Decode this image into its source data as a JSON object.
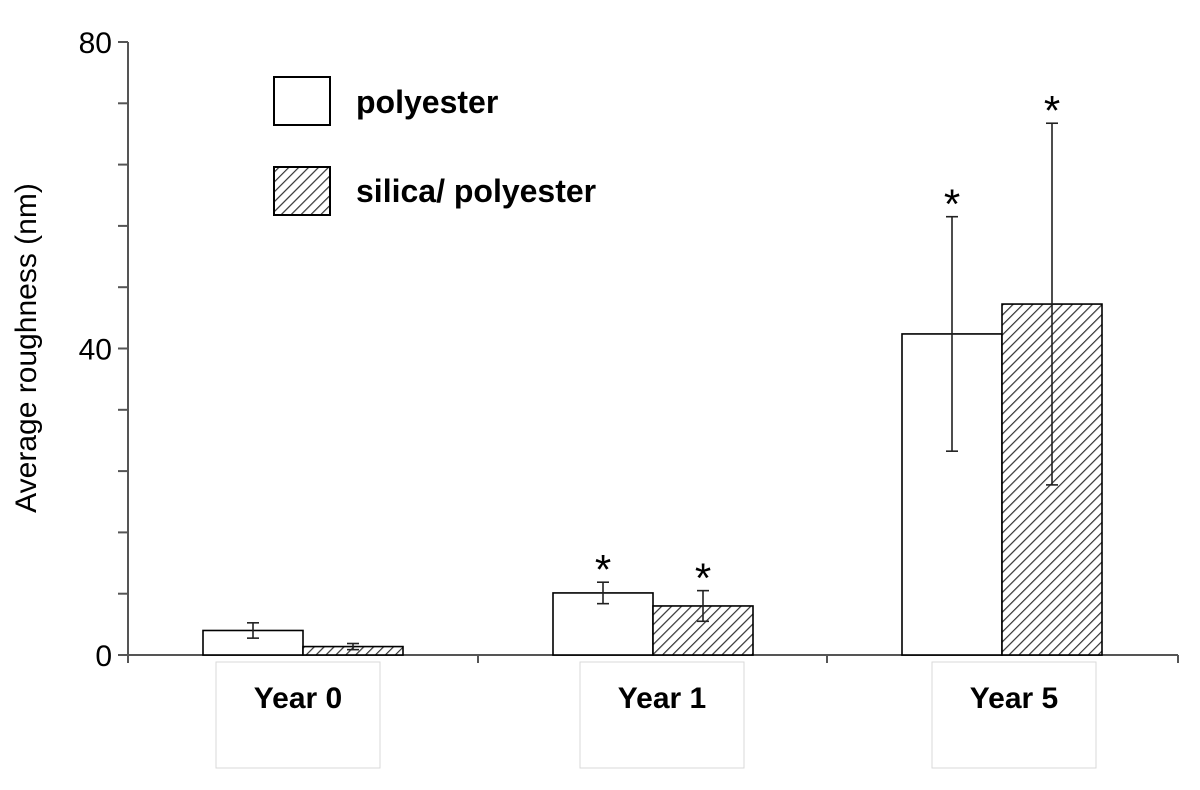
{
  "chart_data": {
    "type": "bar",
    "ylabel": "Average roughness (nm)",
    "ylim": [
      0,
      80
    ],
    "y_major_ticks": [
      0,
      40,
      80
    ],
    "y_minor_step": 8,
    "categories": [
      "Year 0",
      "Year 1",
      "Year 5"
    ],
    "series": [
      {
        "name": "polyester",
        "fill": "plain",
        "values": [
          3.2,
          8.1,
          41.9
        ],
        "errors": [
          1.0,
          1.4,
          15.3
        ],
        "significance": [
          "",
          "*",
          "*"
        ]
      },
      {
        "name": "silica/ polyester",
        "fill": "hatched",
        "values": [
          1.1,
          6.4,
          45.8
        ],
        "errors": [
          0.4,
          2.0,
          23.6
        ],
        "significance": [
          "",
          "*",
          "*"
        ]
      }
    ],
    "legend_position": "top-left",
    "grid": false,
    "colors": {
      "bar_fill": "#ffffff",
      "stroke": "#000000",
      "hatch": "#333333",
      "error_bar": "#222222",
      "label_box": "#d9d9d9"
    }
  }
}
